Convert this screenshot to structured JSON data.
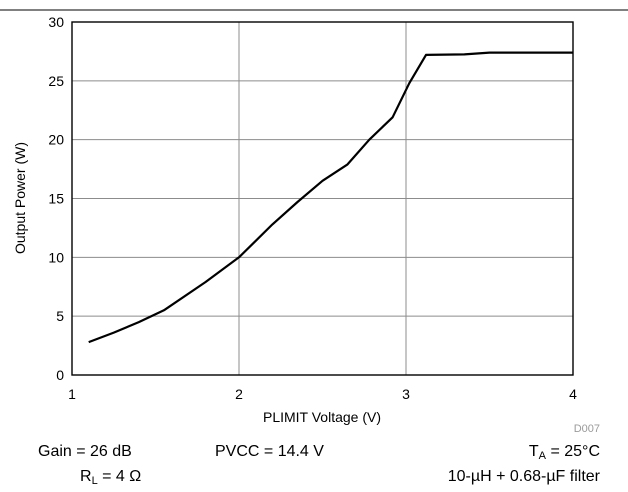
{
  "chart_data": {
    "type": "line",
    "title": "",
    "xlabel": "PLIMIT Voltage (V)",
    "ylabel": "Output Power (W)",
    "xlim": [
      1,
      4
    ],
    "ylim": [
      0,
      30
    ],
    "x_ticks": [
      "1",
      "2",
      "3",
      "4"
    ],
    "y_ticks": [
      "0",
      "5",
      "10",
      "15",
      "20",
      "25",
      "30"
    ],
    "grid": true,
    "figure_code": "D007",
    "series": [
      {
        "points": [
          [
            1.1,
            2.8
          ],
          [
            1.25,
            3.6
          ],
          [
            1.4,
            4.5
          ],
          [
            1.55,
            5.5
          ],
          [
            1.8,
            7.9
          ],
          [
            2.0,
            10.0
          ],
          [
            2.2,
            12.8
          ],
          [
            2.35,
            14.7
          ],
          [
            2.5,
            16.5
          ],
          [
            2.65,
            17.9
          ],
          [
            2.78,
            20.0
          ],
          [
            2.92,
            21.9
          ],
          [
            3.02,
            24.8
          ],
          [
            3.12,
            27.2
          ],
          [
            3.35,
            27.25
          ],
          [
            3.5,
            27.4
          ],
          [
            4.0,
            27.4
          ]
        ]
      }
    ]
  },
  "conditions": {
    "gain": "Gain = 26 dB",
    "pvcc": "PVCC = 14.4 V",
    "ta_main": "T",
    "ta_sub": "A",
    "ta_rest": " = 25°C",
    "rl_main": "R",
    "rl_sub": "L",
    "rl_rest": " = 4 Ω",
    "filter": "10-µH + 0.68-µF filter"
  }
}
